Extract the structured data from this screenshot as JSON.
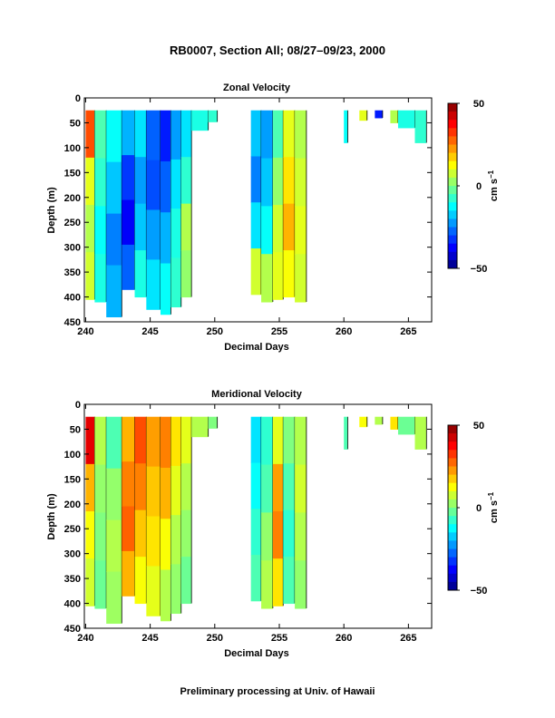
{
  "figure": {
    "title": "RB0007, Section All; 08/27–09/23, 2000",
    "footer": "Preliminary processing at Univ. of Hawaii"
  },
  "chart_data": [
    {
      "type": "heatmap",
      "title": "Zonal Velocity",
      "xlabel": "Decimal Days",
      "ylabel": "Depth (m)",
      "xlim": [
        239.9,
        266.8
      ],
      "ylim": [
        450,
        0
      ],
      "xticks": [
        240,
        245,
        250,
        255,
        260,
        265
      ],
      "yticks": [
        0,
        50,
        100,
        150,
        200,
        250,
        300,
        350,
        400,
        450
      ],
      "colorbar": {
        "min": -50,
        "max": 50,
        "ticks": [
          50,
          0,
          -50
        ],
        "tick_labels": [
          "50",
          "0",
          "−50"
        ],
        "label": "cm s",
        "label_superscript": "−1"
      },
      "columns": [
        {
          "x0": 240.0,
          "x1": 240.7,
          "top": 25,
          "bottom": 405,
          "values": [
            30,
            10,
            5,
            8
          ]
        },
        {
          "x0": 240.7,
          "x1": 241.6,
          "top": 25,
          "bottom": 410,
          "values": [
            -5,
            -8,
            -12,
            -10
          ]
        },
        {
          "x0": 241.6,
          "x1": 242.8,
          "top": 25,
          "bottom": 440,
          "values": [
            -12,
            -18,
            -25,
            -20
          ]
        },
        {
          "x0": 242.8,
          "x1": 243.8,
          "top": 25,
          "bottom": 385,
          "values": [
            -20,
            -32,
            -38,
            -28
          ]
        },
        {
          "x0": 243.8,
          "x1": 244.7,
          "top": 25,
          "bottom": 400,
          "values": [
            -15,
            -22,
            -18,
            -10
          ]
        },
        {
          "x0": 244.7,
          "x1": 245.8,
          "top": 25,
          "bottom": 425,
          "values": [
            -28,
            -30,
            -22,
            -15
          ]
        },
        {
          "x0": 245.8,
          "x1": 246.6,
          "top": 25,
          "bottom": 435,
          "values": [
            -35,
            -28,
            -20,
            -12
          ]
        },
        {
          "x0": 246.6,
          "x1": 247.4,
          "top": 25,
          "bottom": 420,
          "values": [
            -22,
            -15,
            -10,
            -8
          ]
        },
        {
          "x0": 247.4,
          "x1": 248.2,
          "top": 25,
          "bottom": 400,
          "values": [
            -15,
            -8,
            5,
            2
          ]
        },
        {
          "x0": 248.2,
          "x1": 249.5,
          "top": 25,
          "bottom": 65,
          "values": [
            -10
          ]
        },
        {
          "x0": 249.5,
          "x1": 250.2,
          "top": 25,
          "bottom": 48,
          "values": [
            -8
          ]
        },
        {
          "x0": 252.8,
          "x1": 253.6,
          "top": 25,
          "bottom": 395,
          "values": [
            -18,
            -25,
            -15,
            8
          ]
        },
        {
          "x0": 253.6,
          "x1": 254.5,
          "top": 25,
          "bottom": 410,
          "values": [
            -22,
            -18,
            -12,
            5
          ]
        },
        {
          "x0": 254.5,
          "x1": 255.3,
          "top": 25,
          "bottom": 405,
          "values": [
            -5,
            2,
            8,
            10
          ]
        },
        {
          "x0": 255.3,
          "x1": 256.2,
          "top": 25,
          "bottom": 400,
          "values": [
            10,
            15,
            20,
            12
          ]
        },
        {
          "x0": 256.2,
          "x1": 257.1,
          "top": 25,
          "bottom": 410,
          "values": [
            5,
            8,
            10,
            8
          ]
        },
        {
          "x0": 260.0,
          "x1": 260.3,
          "top": 25,
          "bottom": 90,
          "values": [
            -12
          ]
        },
        {
          "x0": 261.2,
          "x1": 261.8,
          "top": 25,
          "bottom": 45,
          "values": [
            10
          ]
        },
        {
          "x0": 262.4,
          "x1": 263.0,
          "top": 25,
          "bottom": 40,
          "values": [
            -35
          ]
        },
        {
          "x0": 263.6,
          "x1": 264.2,
          "top": 25,
          "bottom": 50,
          "values": [
            5
          ]
        },
        {
          "x0": 264.2,
          "x1": 265.5,
          "top": 25,
          "bottom": 60,
          "values": [
            -10
          ]
        },
        {
          "x0": 265.5,
          "x1": 266.4,
          "top": 25,
          "bottom": 90,
          "values": [
            -8
          ]
        }
      ]
    },
    {
      "type": "heatmap",
      "title": "Meridional Velocity",
      "xlabel": "Decimal Days",
      "ylabel": "Depth (m)",
      "xlim": [
        239.9,
        266.8
      ],
      "ylim": [
        450,
        0
      ],
      "xticks": [
        240,
        245,
        250,
        255,
        260,
        265
      ],
      "yticks": [
        0,
        50,
        100,
        150,
        200,
        250,
        300,
        350,
        400,
        450
      ],
      "colorbar": {
        "min": -50,
        "max": 50,
        "ticks": [
          50,
          0,
          -50
        ],
        "tick_labels": [
          "50",
          "0",
          "−50"
        ],
        "label": "cm s",
        "label_superscript": "−1"
      },
      "columns": [
        {
          "x0": 240.0,
          "x1": 240.7,
          "top": 25,
          "bottom": 405,
          "values": [
            40,
            20,
            12,
            8
          ]
        },
        {
          "x0": 240.7,
          "x1": 241.6,
          "top": 25,
          "bottom": 410,
          "values": [
            5,
            2,
            0,
            -2
          ]
        },
        {
          "x0": 241.6,
          "x1": 242.8,
          "top": 25,
          "bottom": 440,
          "values": [
            -5,
            2,
            5,
            3
          ]
        },
        {
          "x0": 242.8,
          "x1": 243.8,
          "top": 25,
          "bottom": 385,
          "values": [
            20,
            25,
            28,
            20
          ]
        },
        {
          "x0": 243.8,
          "x1": 244.7,
          "top": 25,
          "bottom": 400,
          "values": [
            30,
            25,
            18,
            12
          ]
        },
        {
          "x0": 244.7,
          "x1": 245.8,
          "top": 25,
          "bottom": 425,
          "values": [
            22,
            18,
            15,
            10
          ]
        },
        {
          "x0": 245.8,
          "x1": 246.6,
          "top": 25,
          "bottom": 435,
          "values": [
            25,
            20,
            12,
            5
          ]
        },
        {
          "x0": 246.6,
          "x1": 247.4,
          "top": 25,
          "bottom": 420,
          "values": [
            15,
            10,
            5,
            2
          ]
        },
        {
          "x0": 247.4,
          "x1": 248.2,
          "top": 25,
          "bottom": 400,
          "values": [
            10,
            5,
            2,
            -2
          ]
        },
        {
          "x0": 248.2,
          "x1": 249.5,
          "top": 25,
          "bottom": 65,
          "values": [
            5
          ]
        },
        {
          "x0": 249.5,
          "x1": 250.2,
          "top": 25,
          "bottom": 48,
          "values": [
            0
          ]
        },
        {
          "x0": 252.8,
          "x1": 253.6,
          "top": 25,
          "bottom": 395,
          "values": [
            -15,
            -12,
            -8,
            -5
          ]
        },
        {
          "x0": 253.6,
          "x1": 254.5,
          "top": 25,
          "bottom": 410,
          "values": [
            -8,
            -5,
            2,
            5
          ]
        },
        {
          "x0": 254.5,
          "x1": 255.3,
          "top": 25,
          "bottom": 405,
          "values": [
            10,
            22,
            25,
            15
          ]
        },
        {
          "x0": 255.3,
          "x1": 256.2,
          "top": 25,
          "bottom": 400,
          "values": [
            0,
            -5,
            -8,
            -5
          ]
        },
        {
          "x0": 256.2,
          "x1": 257.1,
          "top": 25,
          "bottom": 410,
          "values": [
            5,
            8,
            5,
            2
          ]
        },
        {
          "x0": 260.0,
          "x1": 260.3,
          "top": 25,
          "bottom": 90,
          "values": [
            -5
          ]
        },
        {
          "x0": 261.2,
          "x1": 261.8,
          "top": 25,
          "bottom": 45,
          "values": [
            12
          ]
        },
        {
          "x0": 262.4,
          "x1": 263.0,
          "top": 25,
          "bottom": 40,
          "values": [
            5
          ]
        },
        {
          "x0": 263.6,
          "x1": 264.2,
          "top": 25,
          "bottom": 50,
          "values": [
            15
          ]
        },
        {
          "x0": 264.2,
          "x1": 265.5,
          "top": 25,
          "bottom": 60,
          "values": [
            -2
          ]
        },
        {
          "x0": 265.5,
          "x1": 266.4,
          "top": 25,
          "bottom": 90,
          "values": [
            5
          ]
        }
      ]
    }
  ]
}
